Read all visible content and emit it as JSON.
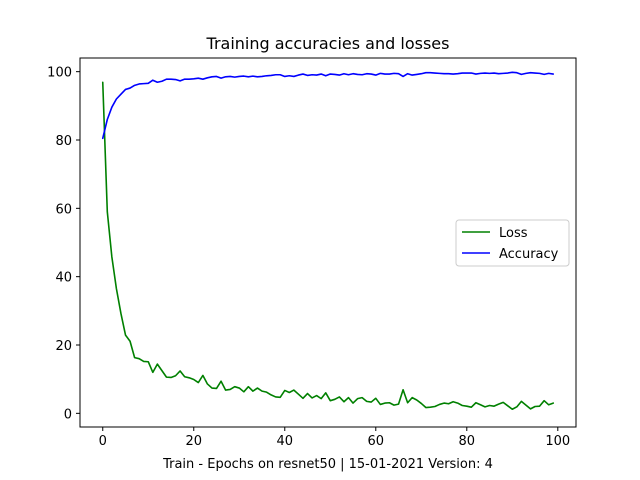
{
  "chart_data": {
    "type": "line",
    "title": "Training accuracies and losses",
    "xlabel": "Train - Epochs on resnet50 | 15-01-2021 Version: 4",
    "ylabel": "",
    "xlim": [
      -5,
      104
    ],
    "ylim": [
      -4,
      104
    ],
    "x_ticks": [
      0,
      20,
      40,
      60,
      80,
      100
    ],
    "y_ticks": [
      0,
      20,
      40,
      60,
      80,
      100
    ],
    "grid": false,
    "legend_position": "center-right",
    "series": [
      {
        "name": "Loss",
        "color": "#008000",
        "values": [
          96.9,
          59.0,
          45.8,
          36.5,
          29.2,
          22.9,
          21.1,
          16.3,
          16.0,
          15.2,
          15.1,
          12.0,
          14.4,
          12.5,
          10.6,
          10.5,
          11.0,
          12.4,
          10.7,
          10.4,
          9.9,
          9.0,
          11.1,
          8.6,
          7.4,
          7.3,
          9.4,
          6.8,
          7.0,
          7.8,
          7.4,
          6.3,
          7.8,
          6.5,
          7.4,
          6.5,
          6.2,
          5.4,
          4.8,
          4.7,
          6.7,
          6.1,
          6.8,
          5.6,
          4.4,
          5.8,
          4.5,
          5.2,
          4.3,
          6.0,
          3.7,
          4.1,
          4.8,
          3.4,
          4.6,
          3.0,
          4.3,
          4.6,
          3.5,
          3.3,
          4.4,
          2.6,
          3.0,
          3.1,
          2.4,
          2.7,
          6.9,
          3.1,
          4.6,
          3.9,
          2.9,
          1.7,
          1.8,
          2.0,
          2.6,
          3.0,
          2.8,
          3.4,
          3.0,
          2.3,
          2.1,
          1.8,
          3.1,
          2.5,
          1.9,
          2.3,
          2.1,
          2.7,
          3.2,
          2.2,
          1.2,
          1.9,
          3.5,
          2.4,
          1.3,
          2.0,
          2.1,
          3.7,
          2.5,
          3.0
        ]
      },
      {
        "name": "Accuracy",
        "color": "#0000ff",
        "values": [
          80.5,
          86.0,
          89.6,
          92.0,
          93.4,
          94.8,
          95.2,
          96.0,
          96.4,
          96.5,
          96.6,
          97.5,
          96.9,
          97.2,
          97.8,
          97.8,
          97.7,
          97.3,
          97.8,
          97.8,
          97.9,
          98.1,
          97.8,
          98.2,
          98.5,
          98.6,
          98.1,
          98.5,
          98.6,
          98.4,
          98.6,
          98.7,
          98.5,
          98.7,
          98.5,
          98.6,
          98.8,
          98.9,
          99.1,
          99.1,
          98.6,
          98.8,
          98.6,
          99.0,
          99.3,
          98.9,
          99.1,
          99.0,
          99.3,
          98.8,
          99.3,
          99.2,
          99.0,
          99.4,
          99.1,
          99.4,
          99.2,
          99.1,
          99.4,
          99.3,
          99.0,
          99.5,
          99.3,
          99.3,
          99.5,
          99.4,
          98.6,
          99.4,
          99.0,
          99.2,
          99.4,
          99.7,
          99.7,
          99.6,
          99.5,
          99.4,
          99.4,
          99.3,
          99.4,
          99.6,
          99.6,
          99.6,
          99.3,
          99.5,
          99.6,
          99.5,
          99.6,
          99.4,
          99.5,
          99.6,
          99.8,
          99.7,
          99.2,
          99.5,
          99.7,
          99.6,
          99.5,
          99.2,
          99.5,
          99.3
        ]
      }
    ]
  }
}
